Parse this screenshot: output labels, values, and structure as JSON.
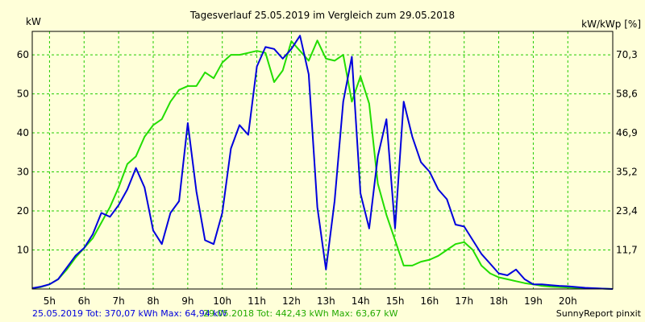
{
  "chart_data": {
    "type": "line",
    "title": "Tagesverlauf 25.05.2019 im Vergleich zum 29.05.2018",
    "ylabel_left": "kW",
    "ylabel_right": "kW/kWp [%]",
    "x_tick_labels": [
      "5h",
      "6h",
      "7h",
      "8h",
      "9h",
      "10h",
      "11h",
      "12h",
      "13h",
      "14h",
      "15h",
      "16h",
      "17h",
      "18h",
      "19h",
      "20h"
    ],
    "x_range_hours": [
      4.5,
      21.3
    ],
    "y_range": [
      0,
      66
    ],
    "y_ticks_left": [
      "10",
      "20",
      "30",
      "40",
      "50",
      "60"
    ],
    "y_ticks_right": [
      "11,7",
      "23,4",
      "35,2",
      "46,9",
      "58,6",
      "70,3"
    ],
    "grid": true,
    "series": [
      {
        "name": "25.05.2019",
        "color": "#0000dd",
        "x": [
          4.5,
          4.75,
          5.0,
          5.25,
          5.5,
          5.75,
          6.0,
          6.25,
          6.5,
          6.75,
          7.0,
          7.25,
          7.5,
          7.75,
          8.0,
          8.25,
          8.5,
          8.75,
          9.0,
          9.25,
          9.5,
          9.75,
          10.0,
          10.25,
          10.5,
          10.75,
          11.0,
          11.25,
          11.5,
          11.75,
          12.0,
          12.25,
          12.5,
          12.75,
          13.0,
          13.25,
          13.5,
          13.75,
          14.0,
          14.25,
          14.5,
          14.75,
          15.0,
          15.25,
          15.5,
          15.75,
          16.0,
          16.25,
          16.5,
          16.75,
          17.0,
          17.25,
          17.5,
          17.75,
          18.0,
          18.25,
          18.5,
          18.75,
          19.0,
          19.25,
          19.5,
          19.75,
          20.0,
          20.5,
          21.0,
          21.3
        ],
        "y": [
          0.2,
          0.6,
          1.2,
          2.5,
          5.5,
          8.5,
          10.5,
          14,
          19.5,
          18.5,
          21.5,
          25.5,
          31,
          26,
          15,
          11.5,
          19.5,
          22.5,
          42.5,
          25,
          12.5,
          11.5,
          19.5,
          36,
          42,
          39.5,
          57,
          62,
          61.5,
          59,
          61.5,
          64.9,
          55,
          21,
          5,
          22.5,
          48,
          59.5,
          24.5,
          15.5,
          34,
          43.5,
          15.5,
          48,
          39,
          32.5,
          30,
          25.5,
          23,
          16.5,
          16,
          12.5,
          9,
          6.5,
          4,
          3.5,
          5,
          2.5,
          1.2,
          1.2,
          1,
          0.8,
          0.7,
          0.3,
          0.1,
          0
        ]
      },
      {
        "name": "29.05.2018",
        "color": "#22dd00",
        "x": [
          4.5,
          4.75,
          5.0,
          5.25,
          5.5,
          5.75,
          6.0,
          6.25,
          6.5,
          6.75,
          7.0,
          7.25,
          7.5,
          7.75,
          8.0,
          8.25,
          8.5,
          8.75,
          9.0,
          9.25,
          9.5,
          9.75,
          10.0,
          10.25,
          10.5,
          10.75,
          11.0,
          11.25,
          11.5,
          11.75,
          12.0,
          12.25,
          12.5,
          12.75,
          13.0,
          13.25,
          13.5,
          13.75,
          14.0,
          14.25,
          14.5,
          14.75,
          15.0,
          15.25,
          15.5,
          15.75,
          16.0,
          16.25,
          16.5,
          16.75,
          17.0,
          17.25,
          17.5,
          17.75,
          18.0,
          18.25,
          18.5,
          18.75,
          19.0,
          19.25,
          19.5,
          19.75,
          20.0,
          20.5,
          21.0,
          21.3
        ],
        "y": [
          0.2,
          0.5,
          1.2,
          2.5,
          5,
          8,
          10.5,
          13,
          17,
          21,
          26,
          32,
          34,
          39,
          42,
          43.5,
          48,
          51,
          52,
          52,
          55.5,
          54,
          58,
          60,
          60,
          60.5,
          61,
          60.5,
          53,
          56,
          63.5,
          61,
          58.5,
          63.67,
          59,
          58.5,
          60,
          48,
          54.5,
          47.5,
          27,
          19,
          12.5,
          6,
          6,
          7,
          7.5,
          8.5,
          10,
          11.5,
          12,
          10,
          6,
          4,
          3,
          2.5,
          2,
          1.5,
          1.2,
          0.8,
          0.6,
          0.5,
          0.4,
          0.2,
          0.1,
          0
        ]
      }
    ],
    "footer": {
      "s1_text": "25.05.2019 Tot: 370,07 kWh Max: 64,94 kW",
      "s2_text": "29.05.2018 Tot: 442,43 kWh Max: 63,67 kW",
      "credit": "SunnyReport pinxit"
    }
  }
}
